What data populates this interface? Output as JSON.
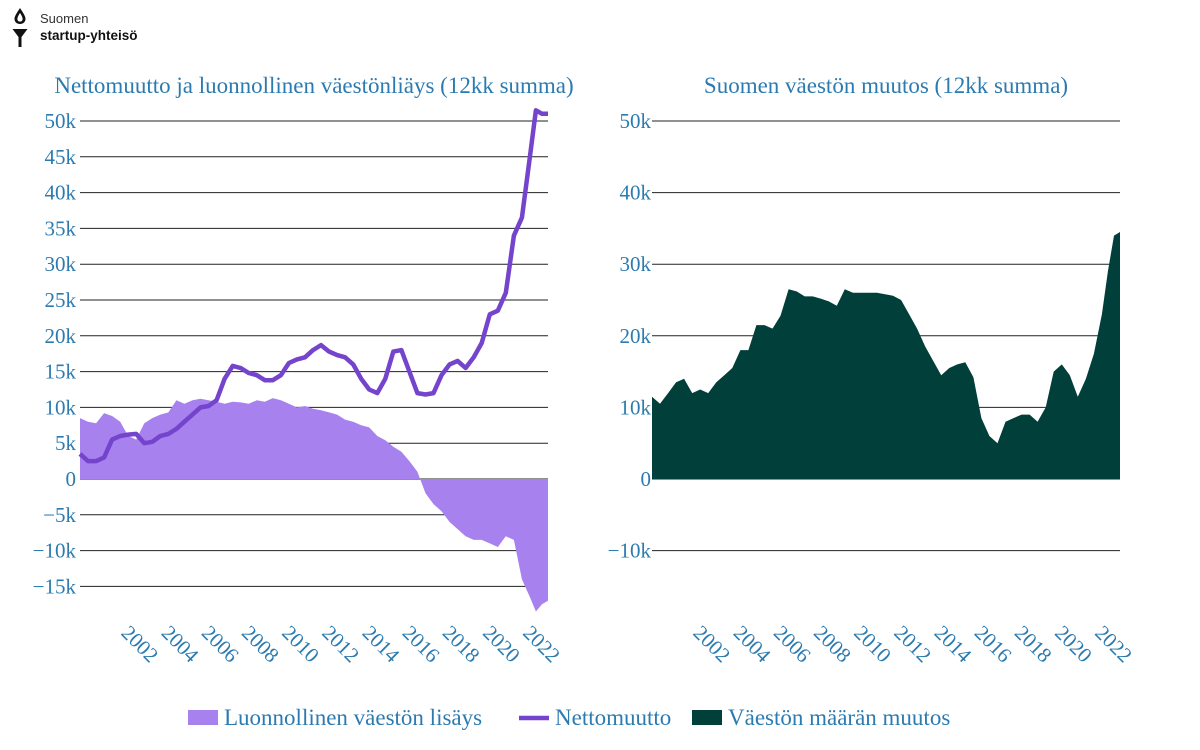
{
  "logo": {
    "line1": "Suomen",
    "line2": "startup-yhteisö"
  },
  "colors": {
    "natural": "#a782ee",
    "net": "#7444cc",
    "total": "#003f3a",
    "text": "#2c7bb0"
  },
  "legend": [
    {
      "key": "natural",
      "label": "Luonnollinen väestön lisäys",
      "kind": "area"
    },
    {
      "key": "net",
      "label": "Nettomuutto",
      "kind": "line"
    },
    {
      "key": "total",
      "label": "Väestön määrän muutos",
      "kind": "area"
    }
  ],
  "chart_data": [
    {
      "type": "area",
      "title": "Nettomuutto ja luonnollinen väestönliäys (12kk summa)",
      "xlabel": "",
      "ylabel": "",
      "xlim": [
        2000.0,
        2023.3
      ],
      "ylim": [
        -19000,
        51500
      ],
      "y_ticks": [
        -15000,
        -10000,
        -5000,
        0,
        5000,
        10000,
        15000,
        20000,
        25000,
        30000,
        35000,
        40000,
        45000,
        50000
      ],
      "y_tick_labels": [
        "−15k",
        "−10k",
        "−5k",
        "0",
        "5k",
        "10k",
        "15k",
        "20k",
        "25k",
        "30k",
        "35k",
        "40k",
        "45k",
        "50k"
      ],
      "x_ticks": [
        2002,
        2004,
        2006,
        2008,
        2010,
        2012,
        2014,
        2016,
        2018,
        2020,
        2022
      ],
      "x_tick_labels": [
        "2002",
        "2004",
        "2006",
        "2008",
        "2010",
        "2012",
        "2014",
        "2016",
        "2018",
        "2020",
        "2022"
      ],
      "grid": true,
      "series": [
        {
          "name": "Luonnollinen väestön lisäys",
          "kind": "area",
          "x": [
            2000.0,
            2000.4,
            2000.8,
            2001.2,
            2001.6,
            2002.0,
            2002.4,
            2002.8,
            2003.2,
            2003.6,
            2004.0,
            2004.4,
            2004.8,
            2005.2,
            2005.6,
            2006.0,
            2006.4,
            2006.8,
            2007.2,
            2007.6,
            2008.0,
            2008.4,
            2008.8,
            2009.2,
            2009.6,
            2010.0,
            2010.4,
            2010.8,
            2011.2,
            2011.6,
            2012.0,
            2012.4,
            2012.8,
            2013.2,
            2013.6,
            2014.0,
            2014.4,
            2014.8,
            2015.2,
            2015.6,
            2016.0,
            2016.4,
            2016.8,
            2017.2,
            2017.6,
            2018.0,
            2018.4,
            2018.8,
            2019.2,
            2019.6,
            2020.0,
            2020.4,
            2020.8,
            2021.2,
            2021.6,
            2022.0,
            2022.4,
            2022.7,
            2023.0,
            2023.3
          ],
          "values": [
            8500,
            8000,
            7800,
            9200,
            8800,
            8000,
            6000,
            5500,
            7800,
            8500,
            9000,
            9300,
            11000,
            10500,
            11000,
            11200,
            11000,
            10800,
            10500,
            10800,
            10700,
            10500,
            11000,
            10800,
            11300,
            11000,
            10500,
            10000,
            10200,
            9800,
            9600,
            9300,
            9000,
            8300,
            8000,
            7500,
            7200,
            6000,
            5400,
            4500,
            3800,
            2500,
            1000,
            -2000,
            -3500,
            -4500,
            -6000,
            -7000,
            -8000,
            -8500,
            -8500,
            -9000,
            -9500,
            -8000,
            -8500,
            -14000,
            -16500,
            -18500,
            -17500,
            -17000
          ]
        },
        {
          "name": "Nettomuutto",
          "kind": "line",
          "x": [
            2000.0,
            2000.4,
            2000.8,
            2001.2,
            2001.6,
            2002.0,
            2002.4,
            2002.8,
            2003.2,
            2003.6,
            2004.0,
            2004.4,
            2004.8,
            2005.2,
            2005.6,
            2006.0,
            2006.4,
            2006.8,
            2007.2,
            2007.6,
            2008.0,
            2008.4,
            2008.8,
            2009.2,
            2009.6,
            2010.0,
            2010.4,
            2010.8,
            2011.2,
            2011.6,
            2012.0,
            2012.4,
            2012.8,
            2013.2,
            2013.6,
            2014.0,
            2014.4,
            2014.8,
            2015.2,
            2015.6,
            2016.0,
            2016.4,
            2016.8,
            2017.2,
            2017.6,
            2018.0,
            2018.4,
            2018.8,
            2019.2,
            2019.6,
            2020.0,
            2020.4,
            2020.8,
            2021.2,
            2021.6,
            2022.0,
            2022.4,
            2022.7,
            2023.0,
            2023.3
          ],
          "values": [
            3500,
            2500,
            2500,
            3000,
            5500,
            6000,
            6200,
            6300,
            5000,
            5200,
            6000,
            6300,
            7000,
            8000,
            9000,
            10000,
            10200,
            11000,
            14000,
            15800,
            15500,
            14800,
            14500,
            13800,
            13800,
            14500,
            16200,
            16700,
            17000,
            18000,
            18700,
            17800,
            17300,
            17000,
            16000,
            14000,
            12500,
            12000,
            14000,
            17800,
            18000,
            15000,
            12000,
            11800,
            12000,
            14500,
            16000,
            16500,
            15500,
            17000,
            19000,
            23000,
            23500,
            26000,
            34000,
            36500,
            45000,
            51500,
            51000,
            51000
          ]
        }
      ]
    },
    {
      "type": "area",
      "title": "Suomen väestön muutos (12kk summa)",
      "xlabel": "",
      "ylabel": "",
      "xlim": [
        2000.0,
        2023.3
      ],
      "ylim": [
        -19000,
        51500
      ],
      "y_ticks": [
        -10000,
        0,
        10000,
        20000,
        30000,
        40000,
        50000
      ],
      "y_tick_labels": [
        "−10k",
        "0",
        "10k",
        "20k",
        "30k",
        "40k",
        "50k"
      ],
      "x_ticks": [
        2002,
        2004,
        2006,
        2008,
        2010,
        2012,
        2014,
        2016,
        2018,
        2020,
        2022
      ],
      "x_tick_labels": [
        "2002",
        "2004",
        "2006",
        "2008",
        "2010",
        "2012",
        "2014",
        "2016",
        "2018",
        "2020",
        "2022"
      ],
      "grid": true,
      "series": [
        {
          "name": "Väestön määrän muutos",
          "kind": "area",
          "x": [
            2000.0,
            2000.4,
            2000.8,
            2001.2,
            2001.6,
            2002.0,
            2002.4,
            2002.8,
            2003.2,
            2003.6,
            2004.0,
            2004.4,
            2004.8,
            2005.2,
            2005.6,
            2006.0,
            2006.4,
            2006.8,
            2007.2,
            2007.6,
            2008.0,
            2008.4,
            2008.8,
            2009.2,
            2009.6,
            2010.0,
            2010.4,
            2010.8,
            2011.2,
            2011.6,
            2012.0,
            2012.4,
            2012.8,
            2013.2,
            2013.6,
            2014.0,
            2014.4,
            2014.8,
            2015.2,
            2015.6,
            2016.0,
            2016.4,
            2016.8,
            2017.2,
            2017.6,
            2018.0,
            2018.4,
            2018.8,
            2019.2,
            2019.6,
            2020.0,
            2020.4,
            2020.8,
            2021.2,
            2021.6,
            2022.0,
            2022.4,
            2022.7,
            2023.0,
            2023.3
          ],
          "values": [
            11500,
            10500,
            12000,
            13500,
            14000,
            12000,
            12500,
            12000,
            13500,
            14500,
            15500,
            18000,
            18000,
            21500,
            21500,
            21000,
            22800,
            26500,
            26200,
            25500,
            25500,
            25200,
            24800,
            24200,
            26500,
            26000,
            26000,
            26000,
            26000,
            25800,
            25600,
            25000,
            23000,
            21000,
            18500,
            16500,
            14500,
            15500,
            16000,
            16300,
            14200,
            8500,
            6000,
            5000,
            8000,
            8500,
            9000,
            9000,
            8000,
            10000,
            15000,
            16000,
            14500,
            11500,
            14000,
            17500,
            23000,
            29000,
            34000,
            34500
          ]
        }
      ]
    }
  ]
}
